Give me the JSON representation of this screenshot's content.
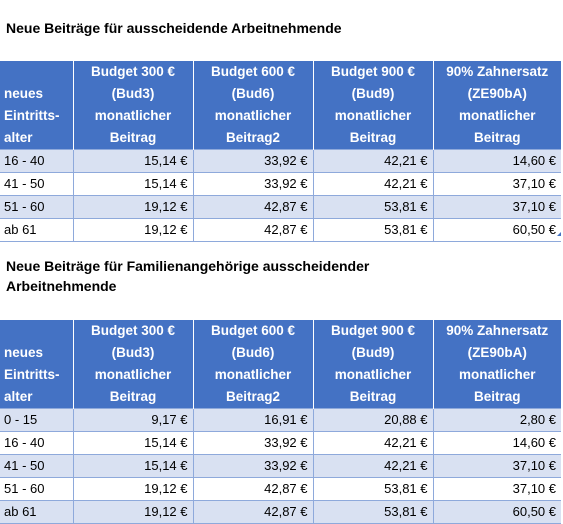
{
  "table1": {
    "title": "Neue Beiträge für ausscheidende Arbeitnehmende",
    "headers": [
      [
        "neues",
        "Eintritts-",
        "alter"
      ],
      [
        "Budget 300 €",
        "(Bud3)",
        "monatlicher",
        "Beitrag"
      ],
      [
        "Budget 600 €",
        "(Bud6)",
        "monatlicher",
        "Beitrag2"
      ],
      [
        "Budget 900 €",
        "(Bud9)",
        "monatlicher",
        "Beitrag"
      ],
      [
        "90% Zahnersatz",
        "(ZE90bA)",
        "monatlicher",
        "Beitrag"
      ]
    ],
    "rows": [
      [
        "16 - 40",
        "15,14 €",
        "33,92 €",
        "42,21 €",
        "14,60 €"
      ],
      [
        "41 - 50",
        "15,14 €",
        "33,92 €",
        "42,21 €",
        "37,10 €"
      ],
      [
        "51 - 60",
        "19,12 €",
        "42,87 €",
        "53,81 €",
        "37,10 €"
      ],
      [
        "ab 61",
        "19,12 €",
        "42,87 €",
        "53,81 €",
        "60,50 €"
      ]
    ]
  },
  "table2": {
    "title": "Neue Beiträge für Familienangehörige ausscheidender Arbeitnehmende",
    "headers": [
      [
        "neues",
        "Eintritts-",
        "alter"
      ],
      [
        "Budget 300 €",
        "(Bud3)",
        "monatlicher",
        "Beitrag"
      ],
      [
        "Budget 600 €",
        "(Bud6)",
        "monatlicher",
        "Beitrag2"
      ],
      [
        "Budget 900 €",
        "(Bud9)",
        "monatlicher",
        "Beitrag"
      ],
      [
        "90% Zahnersatz",
        "(ZE90bA)",
        "monatlicher",
        "Beitrag"
      ]
    ],
    "rows": [
      [
        "0 - 15",
        "9,17 €",
        "16,91 €",
        "20,88 €",
        "2,80 €"
      ],
      [
        "16 - 40",
        "15,14 €",
        "33,92 €",
        "42,21 €",
        "14,60 €"
      ],
      [
        "41 - 50",
        "15,14 €",
        "33,92 €",
        "42,21 €",
        "37,10 €"
      ],
      [
        "51 - 60",
        "19,12 €",
        "42,87 €",
        "53,81 €",
        "37,10 €"
      ],
      [
        "ab 61",
        "19,12 €",
        "42,87 €",
        "53,81 €",
        "60,50 €"
      ]
    ]
  },
  "colors": {
    "header_bg": "#4472c4",
    "header_text": "#ffffff",
    "band_row": "#d9e1f2",
    "plain_row": "#ffffff",
    "grid_line": "#8ea9db"
  }
}
